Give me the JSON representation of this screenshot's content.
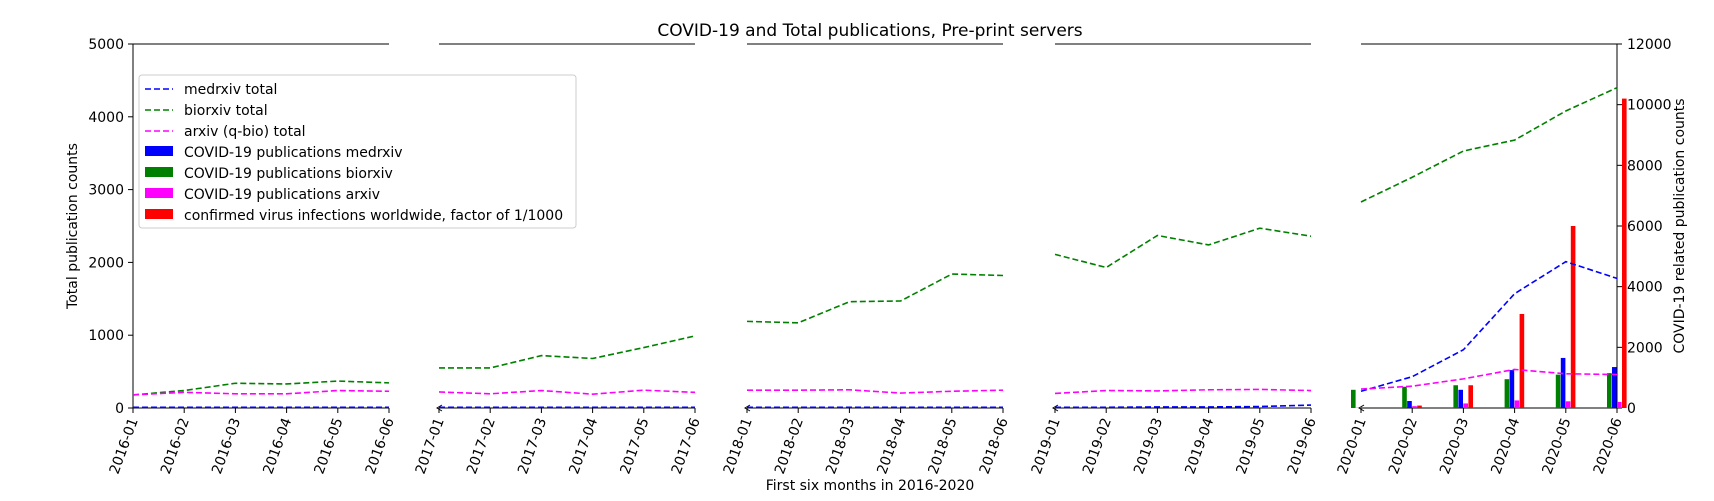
{
  "chart_data": {
    "type": "line+bar",
    "title": "COVID-19 and Total publications, Pre-print servers",
    "xlabel": "First six months in 2016-2020",
    "ylabel": "Total publication counts",
    "ylabel_right": "COVID-19 related publication counts",
    "ylim": [
      0,
      5000
    ],
    "ylim_right": [
      0,
      12000
    ],
    "yticks": [
      "0",
      "1000",
      "2000",
      "3000",
      "4000",
      "5000"
    ],
    "yticks_right": [
      "0",
      "2000",
      "4000",
      "6000",
      "8000",
      "10000",
      "12000"
    ],
    "legend_position": "upper-left",
    "panels": [
      {
        "year": "2016",
        "months": [
          "2016-01",
          "2016-02",
          "2016-03",
          "2016-04",
          "2016-05",
          "2016-06"
        ],
        "medrxiv_total": [
          10,
          10,
          10,
          10,
          10,
          10
        ],
        "biorxiv_total": [
          180,
          240,
          340,
          330,
          370,
          345
        ],
        "arxiv_total": [
          180,
          215,
          195,
          195,
          240,
          230
        ]
      },
      {
        "year": "2017",
        "months": [
          "2017-01",
          "2017-02",
          "2017-03",
          "2017-04",
          "2017-05",
          "2017-06"
        ],
        "medrxiv_total": [
          10,
          10,
          10,
          10,
          10,
          10
        ],
        "biorxiv_total": [
          550,
          550,
          720,
          680,
          830,
          990
        ],
        "arxiv_total": [
          220,
          195,
          240,
          190,
          245,
          215
        ]
      },
      {
        "year": "2018",
        "months": [
          "2018-01",
          "2018-02",
          "2018-03",
          "2018-04",
          "2018-05",
          "2018-06"
        ],
        "medrxiv_total": [
          10,
          10,
          10,
          10,
          10,
          10
        ],
        "biorxiv_total": [
          1190,
          1170,
          1460,
          1470,
          1840,
          1820
        ],
        "arxiv_total": [
          245,
          245,
          250,
          205,
          230,
          245
        ]
      },
      {
        "year": "2019",
        "months": [
          "2019-01",
          "2019-02",
          "2019-03",
          "2019-04",
          "2019-05",
          "2019-06"
        ],
        "medrxiv_total": [
          10,
          10,
          15,
          15,
          20,
          40
        ],
        "biorxiv_total": [
          2110,
          1930,
          2370,
          2240,
          2470,
          2360
        ],
        "arxiv_total": [
          200,
          240,
          235,
          250,
          255,
          240
        ]
      },
      {
        "year": "2020",
        "months": [
          "2020-01",
          "2020-02",
          "2020-03",
          "2020-04",
          "2020-05",
          "2020-06"
        ],
        "medrxiv_total": [
          230,
          430,
          800,
          1570,
          2010,
          1780
        ],
        "biorxiv_total": [
          2830,
          3170,
          3530,
          3680,
          4080,
          4400
        ],
        "arxiv_total": [
          260,
          300,
          400,
          530,
          470,
          460
        ],
        "covid_medrxiv": [
          5,
          230,
          600,
          1250,
          1650,
          1350
        ],
        "covid_biorxiv": [
          600,
          700,
          750,
          950,
          1100,
          1150
        ],
        "covid_arxiv": [
          0,
          60,
          150,
          250,
          220,
          200
        ],
        "infections": [
          0,
          80,
          750,
          3100,
          6000,
          10200
        ]
      }
    ],
    "series": [
      {
        "name": "medrxiv total",
        "color": "#0000ff",
        "style": "dashed-line"
      },
      {
        "name": "biorxiv total",
        "color": "#008000",
        "style": "dashed-line"
      },
      {
        "name": "arxiv (q-bio) total",
        "color": "#ff00ff",
        "style": "dashed-line"
      },
      {
        "name": "COVID-19 publications medrxiv",
        "color": "#0000ff",
        "style": "bar"
      },
      {
        "name": "COVID-19 publications biorxiv",
        "color": "#008000",
        "style": "bar"
      },
      {
        "name": "COVID-19 publications arxiv",
        "color": "#ff00ff",
        "style": "bar"
      },
      {
        "name": "confirmed virus infections worldwide, factor of 1/1000",
        "color": "#ff0000",
        "style": "bar"
      }
    ]
  }
}
